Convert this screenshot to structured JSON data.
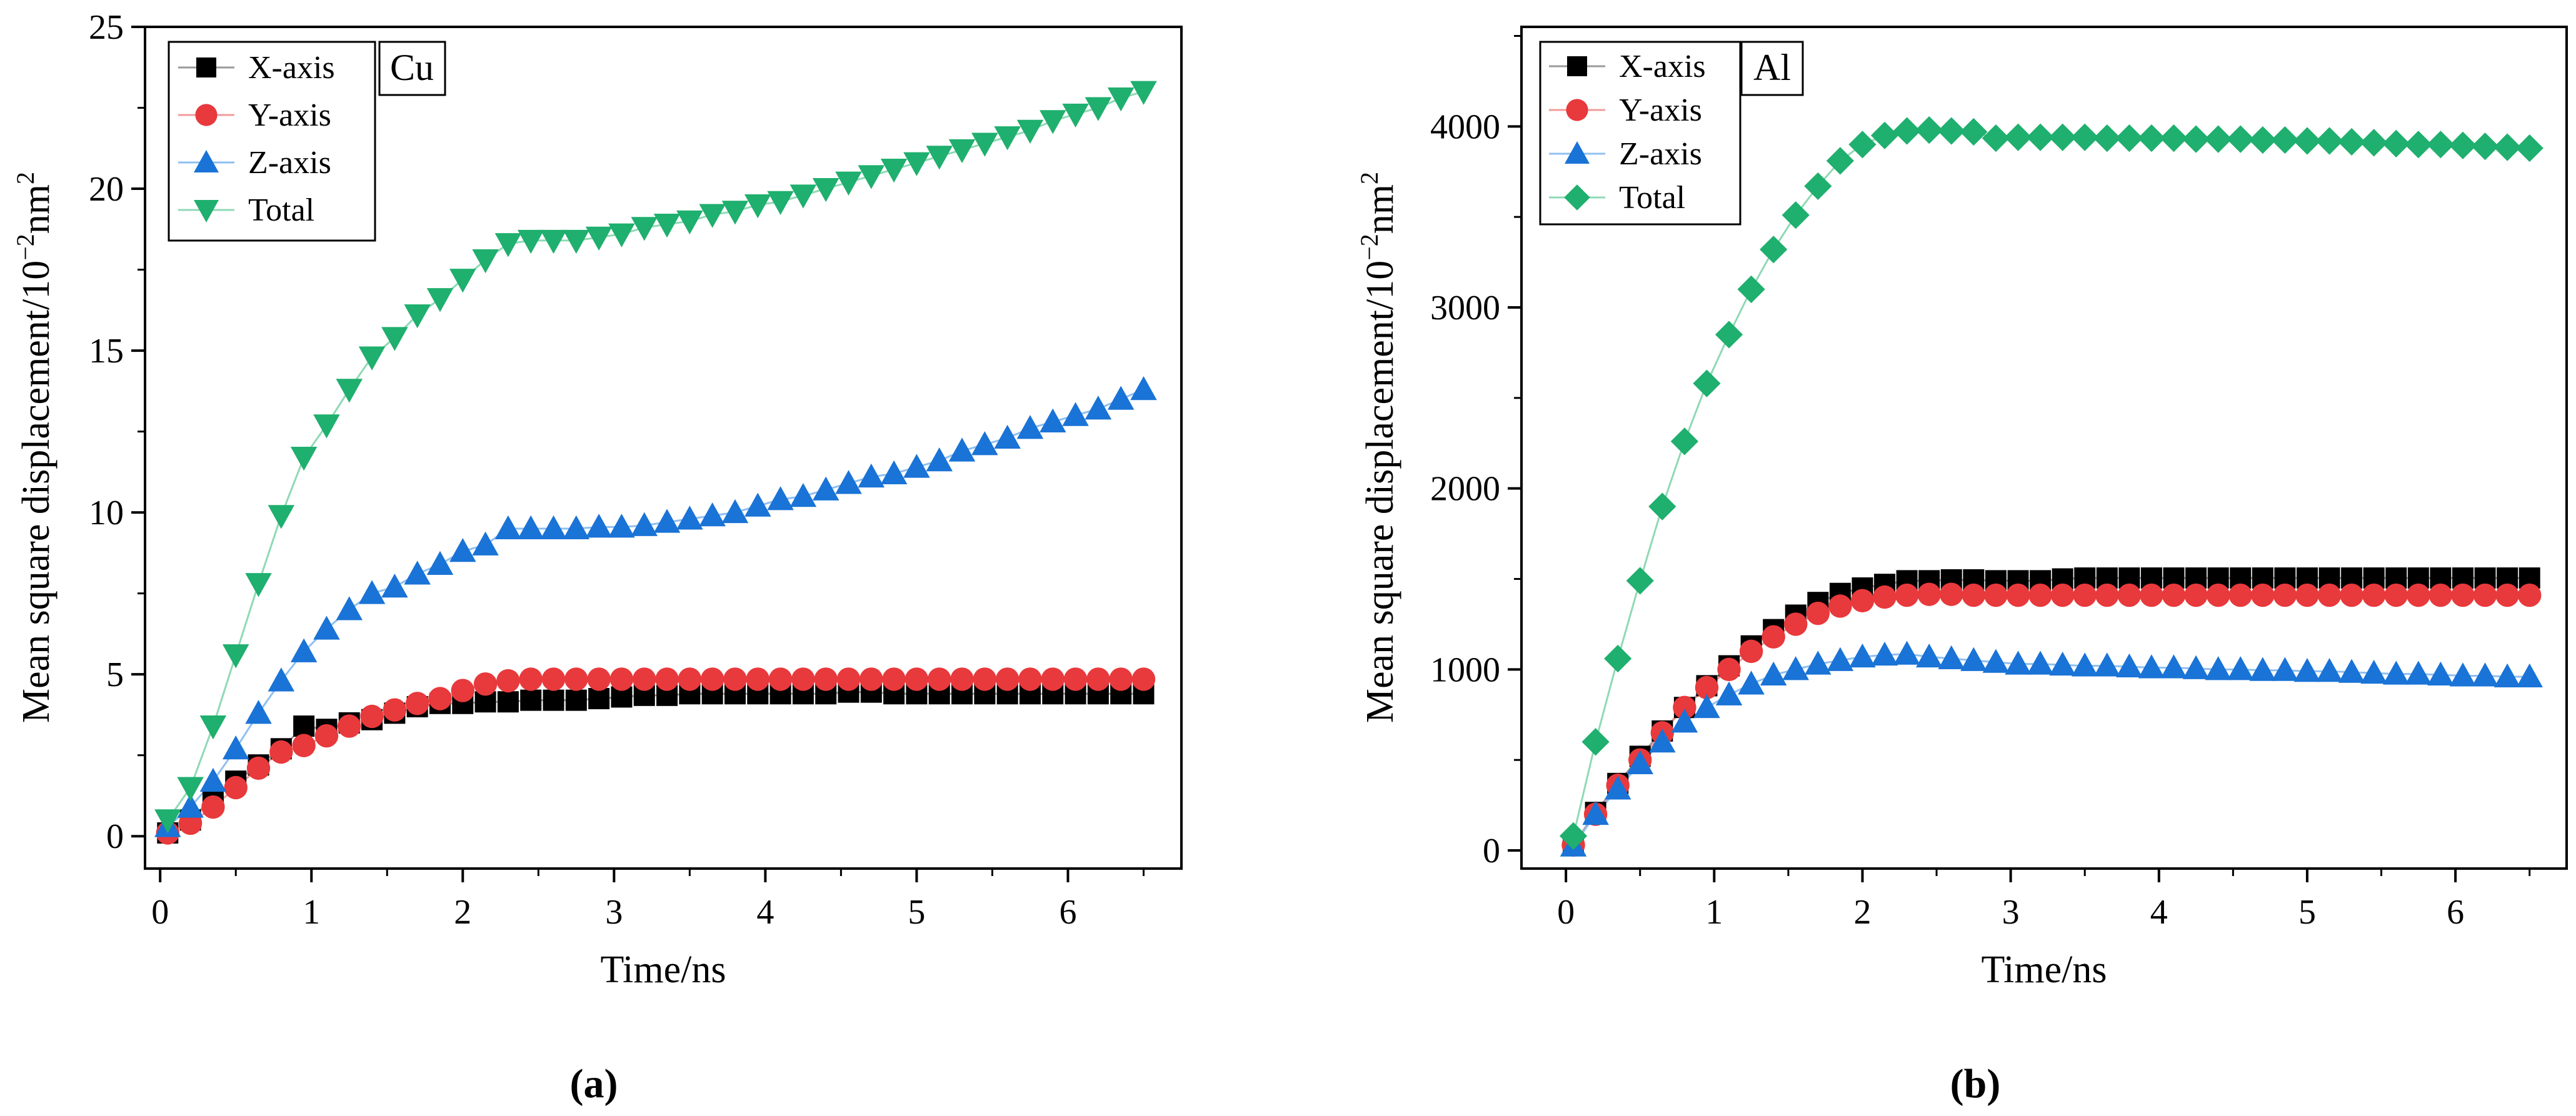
{
  "figure": {
    "series_style": [
      {
        "name": "X-axis",
        "color": "#000000",
        "marker": "square"
      },
      {
        "name": "Y-axis",
        "color": "#e8393c",
        "marker": "circle"
      },
      {
        "name": "Z-axis",
        "color": "#1a73d6",
        "marker": "triangle-up"
      },
      {
        "name": "Total",
        "marker_a": "triangle-down",
        "marker_b": "diamond",
        "color": "#1faf6e"
      }
    ],
    "line_colors": {
      "X-axis": "#9a9a9a",
      "Y-axis": "#f29a9a",
      "Z-axis": "#8fbff0",
      "Total": "#8fd9b4"
    }
  },
  "chart_data": [
    {
      "type": "scatter",
      "panel": "(a)",
      "badge": "Cu",
      "xlabel": "Time/ns",
      "ylabel_main": "Mean square displacement/10",
      "ylabel_sup": "−2",
      "ylabel_unit": "nm",
      "ylabel_unit_sup": "2",
      "xlim": [
        -0.1,
        6.75
      ],
      "ylim": [
        -1,
        25
      ],
      "xticks": [
        "0",
        "1",
        "2",
        "3",
        "4",
        "5",
        "6"
      ],
      "xtick_values": [
        0,
        1,
        2,
        3,
        4,
        5,
        6
      ],
      "yticks": [
        "0",
        "5",
        "10",
        "15",
        "20",
        "25"
      ],
      "ytick_values": [
        0,
        5,
        10,
        15,
        20,
        25
      ],
      "legend": [
        "X-axis",
        "Y-axis",
        "Z-axis",
        "Total"
      ],
      "legend_position": "top-left",
      "x": [
        0.05,
        0.2,
        0.35,
        0.5,
        0.65,
        0.8,
        0.95,
        1.1,
        1.25,
        1.4,
        1.55,
        1.7,
        1.85,
        2.0,
        2.15,
        2.3,
        2.45,
        2.6,
        2.75,
        2.9,
        3.05,
        3.2,
        3.35,
        3.5,
        3.65,
        3.8,
        3.95,
        4.1,
        4.25,
        4.4,
        4.55,
        4.7,
        4.85,
        5.0,
        5.15,
        5.3,
        5.45,
        5.6,
        5.75,
        5.9,
        6.05,
        6.2,
        6.35,
        6.5
      ],
      "series": [
        {
          "name": "X-axis",
          "values": [
            0.1,
            0.5,
            1.2,
            1.7,
            2.2,
            2.7,
            3.4,
            3.3,
            3.5,
            3.6,
            3.8,
            4.0,
            4.1,
            4.1,
            4.15,
            4.15,
            4.2,
            4.2,
            4.2,
            4.25,
            4.3,
            4.35,
            4.35,
            4.4,
            4.4,
            4.4,
            4.4,
            4.4,
            4.4,
            4.4,
            4.45,
            4.45,
            4.4,
            4.4,
            4.4,
            4.4,
            4.4,
            4.4,
            4.4,
            4.4,
            4.4,
            4.4,
            4.4,
            4.4
          ]
        },
        {
          "name": "Y-axis",
          "values": [
            0.1,
            0.4,
            0.9,
            1.5,
            2.1,
            2.6,
            2.8,
            3.1,
            3.4,
            3.7,
            3.9,
            4.1,
            4.25,
            4.5,
            4.7,
            4.8,
            4.85,
            4.85,
            4.85,
            4.85,
            4.85,
            4.85,
            4.85,
            4.85,
            4.85,
            4.85,
            4.85,
            4.85,
            4.85,
            4.85,
            4.85,
            4.85,
            4.85,
            4.85,
            4.85,
            4.85,
            4.85,
            4.85,
            4.85,
            4.85,
            4.85,
            4.85,
            4.85,
            4.85
          ]
        },
        {
          "name": "Z-axis",
          "values": [
            0.3,
            0.9,
            1.7,
            2.7,
            3.8,
            4.8,
            5.7,
            6.4,
            7.0,
            7.5,
            7.7,
            8.1,
            8.4,
            8.8,
            9.0,
            9.5,
            9.5,
            9.5,
            9.5,
            9.55,
            9.55,
            9.6,
            9.7,
            9.8,
            9.9,
            10.0,
            10.2,
            10.4,
            10.5,
            10.7,
            10.9,
            11.1,
            11.2,
            11.4,
            11.6,
            11.9,
            12.1,
            12.3,
            12.6,
            12.8,
            13.0,
            13.2,
            13.5,
            13.8
          ]
        },
        {
          "name": "Total",
          "values": [
            0.5,
            1.5,
            3.4,
            5.6,
            7.8,
            9.9,
            11.7,
            12.7,
            13.8,
            14.8,
            15.4,
            16.1,
            16.6,
            17.2,
            17.8,
            18.3,
            18.4,
            18.4,
            18.4,
            18.5,
            18.6,
            18.8,
            18.9,
            19.0,
            19.2,
            19.3,
            19.5,
            19.6,
            19.8,
            20.0,
            20.2,
            20.4,
            20.6,
            20.8,
            21.0,
            21.2,
            21.4,
            21.6,
            21.8,
            22.1,
            22.3,
            22.5,
            22.8,
            23.0
          ]
        }
      ]
    },
    {
      "type": "scatter",
      "panel": "(b)",
      "badge": "Al",
      "xlabel": "Time/ns",
      "ylabel_main": "Mean square displacement/10",
      "ylabel_sup": "−2",
      "ylabel_unit": "nm",
      "ylabel_unit_sup": "2",
      "xlim": [
        -0.3,
        6.75
      ],
      "ylim": [
        -100,
        4550
      ],
      "xticks": [
        "0",
        "1",
        "2",
        "3",
        "4",
        "5",
        "6"
      ],
      "xtick_values": [
        0,
        1,
        2,
        3,
        4,
        5,
        6
      ],
      "yticks": [
        "0",
        "1000",
        "2000",
        "3000",
        "4000"
      ],
      "ytick_values": [
        0,
        1000,
        2000,
        3000,
        4000
      ],
      "legend": [
        "X-axis",
        "Y-axis",
        "Z-axis",
        "Total"
      ],
      "legend_position": "top-left",
      "x": [
        0.05,
        0.2,
        0.35,
        0.5,
        0.65,
        0.8,
        0.95,
        1.1,
        1.25,
        1.4,
        1.55,
        1.7,
        1.85,
        2.0,
        2.15,
        2.3,
        2.45,
        2.6,
        2.75,
        2.9,
        3.05,
        3.2,
        3.35,
        3.5,
        3.65,
        3.8,
        3.95,
        4.1,
        4.25,
        4.4,
        4.55,
        4.7,
        4.85,
        5.0,
        5.15,
        5.3,
        5.45,
        5.6,
        5.75,
        5.9,
        6.05,
        6.2,
        6.35,
        6.5
      ],
      "series": [
        {
          "name": "X-axis",
          "values": [
            30,
            210,
            370,
            520,
            660,
            790,
            910,
            1020,
            1130,
            1220,
            1300,
            1370,
            1420,
            1450,
            1470,
            1490,
            1490,
            1495,
            1495,
            1490,
            1490,
            1490,
            1500,
            1505,
            1505,
            1505,
            1505,
            1505,
            1505,
            1505,
            1505,
            1505,
            1505,
            1505,
            1505,
            1505,
            1505,
            1505,
            1505,
            1505,
            1505,
            1505,
            1505,
            1505
          ]
        },
        {
          "name": "Y-axis",
          "values": [
            30,
            200,
            360,
            500,
            650,
            790,
            900,
            1000,
            1100,
            1180,
            1250,
            1310,
            1350,
            1380,
            1400,
            1410,
            1415,
            1415,
            1410,
            1410,
            1410,
            1410,
            1410,
            1410,
            1410,
            1410,
            1410,
            1410,
            1410,
            1410,
            1410,
            1410,
            1410,
            1410,
            1410,
            1410,
            1410,
            1410,
            1410,
            1410,
            1410,
            1410,
            1410,
            1410
          ]
        },
        {
          "name": "Z-axis",
          "values": [
            25,
            200,
            340,
            480,
            600,
            710,
            790,
            860,
            920,
            970,
            1000,
            1030,
            1050,
            1070,
            1080,
            1085,
            1070,
            1060,
            1050,
            1040,
            1030,
            1030,
            1025,
            1020,
            1020,
            1015,
            1010,
            1010,
            1005,
            1000,
            1000,
            995,
            995,
            990,
            990,
            985,
            980,
            975,
            975,
            970,
            965,
            965,
            960,
            960
          ]
        },
        {
          "name": "Total",
          "values": [
            80,
            600,
            1060,
            1490,
            1900,
            2260,
            2580,
            2850,
            3100,
            3320,
            3510,
            3670,
            3810,
            3900,
            3950,
            3975,
            3980,
            3975,
            3970,
            3935,
            3940,
            3940,
            3940,
            3940,
            3935,
            3935,
            3935,
            3935,
            3930,
            3930,
            3930,
            3925,
            3925,
            3920,
            3920,
            3915,
            3910,
            3905,
            3900,
            3900,
            3895,
            3890,
            3885,
            3880
          ]
        }
      ]
    }
  ]
}
